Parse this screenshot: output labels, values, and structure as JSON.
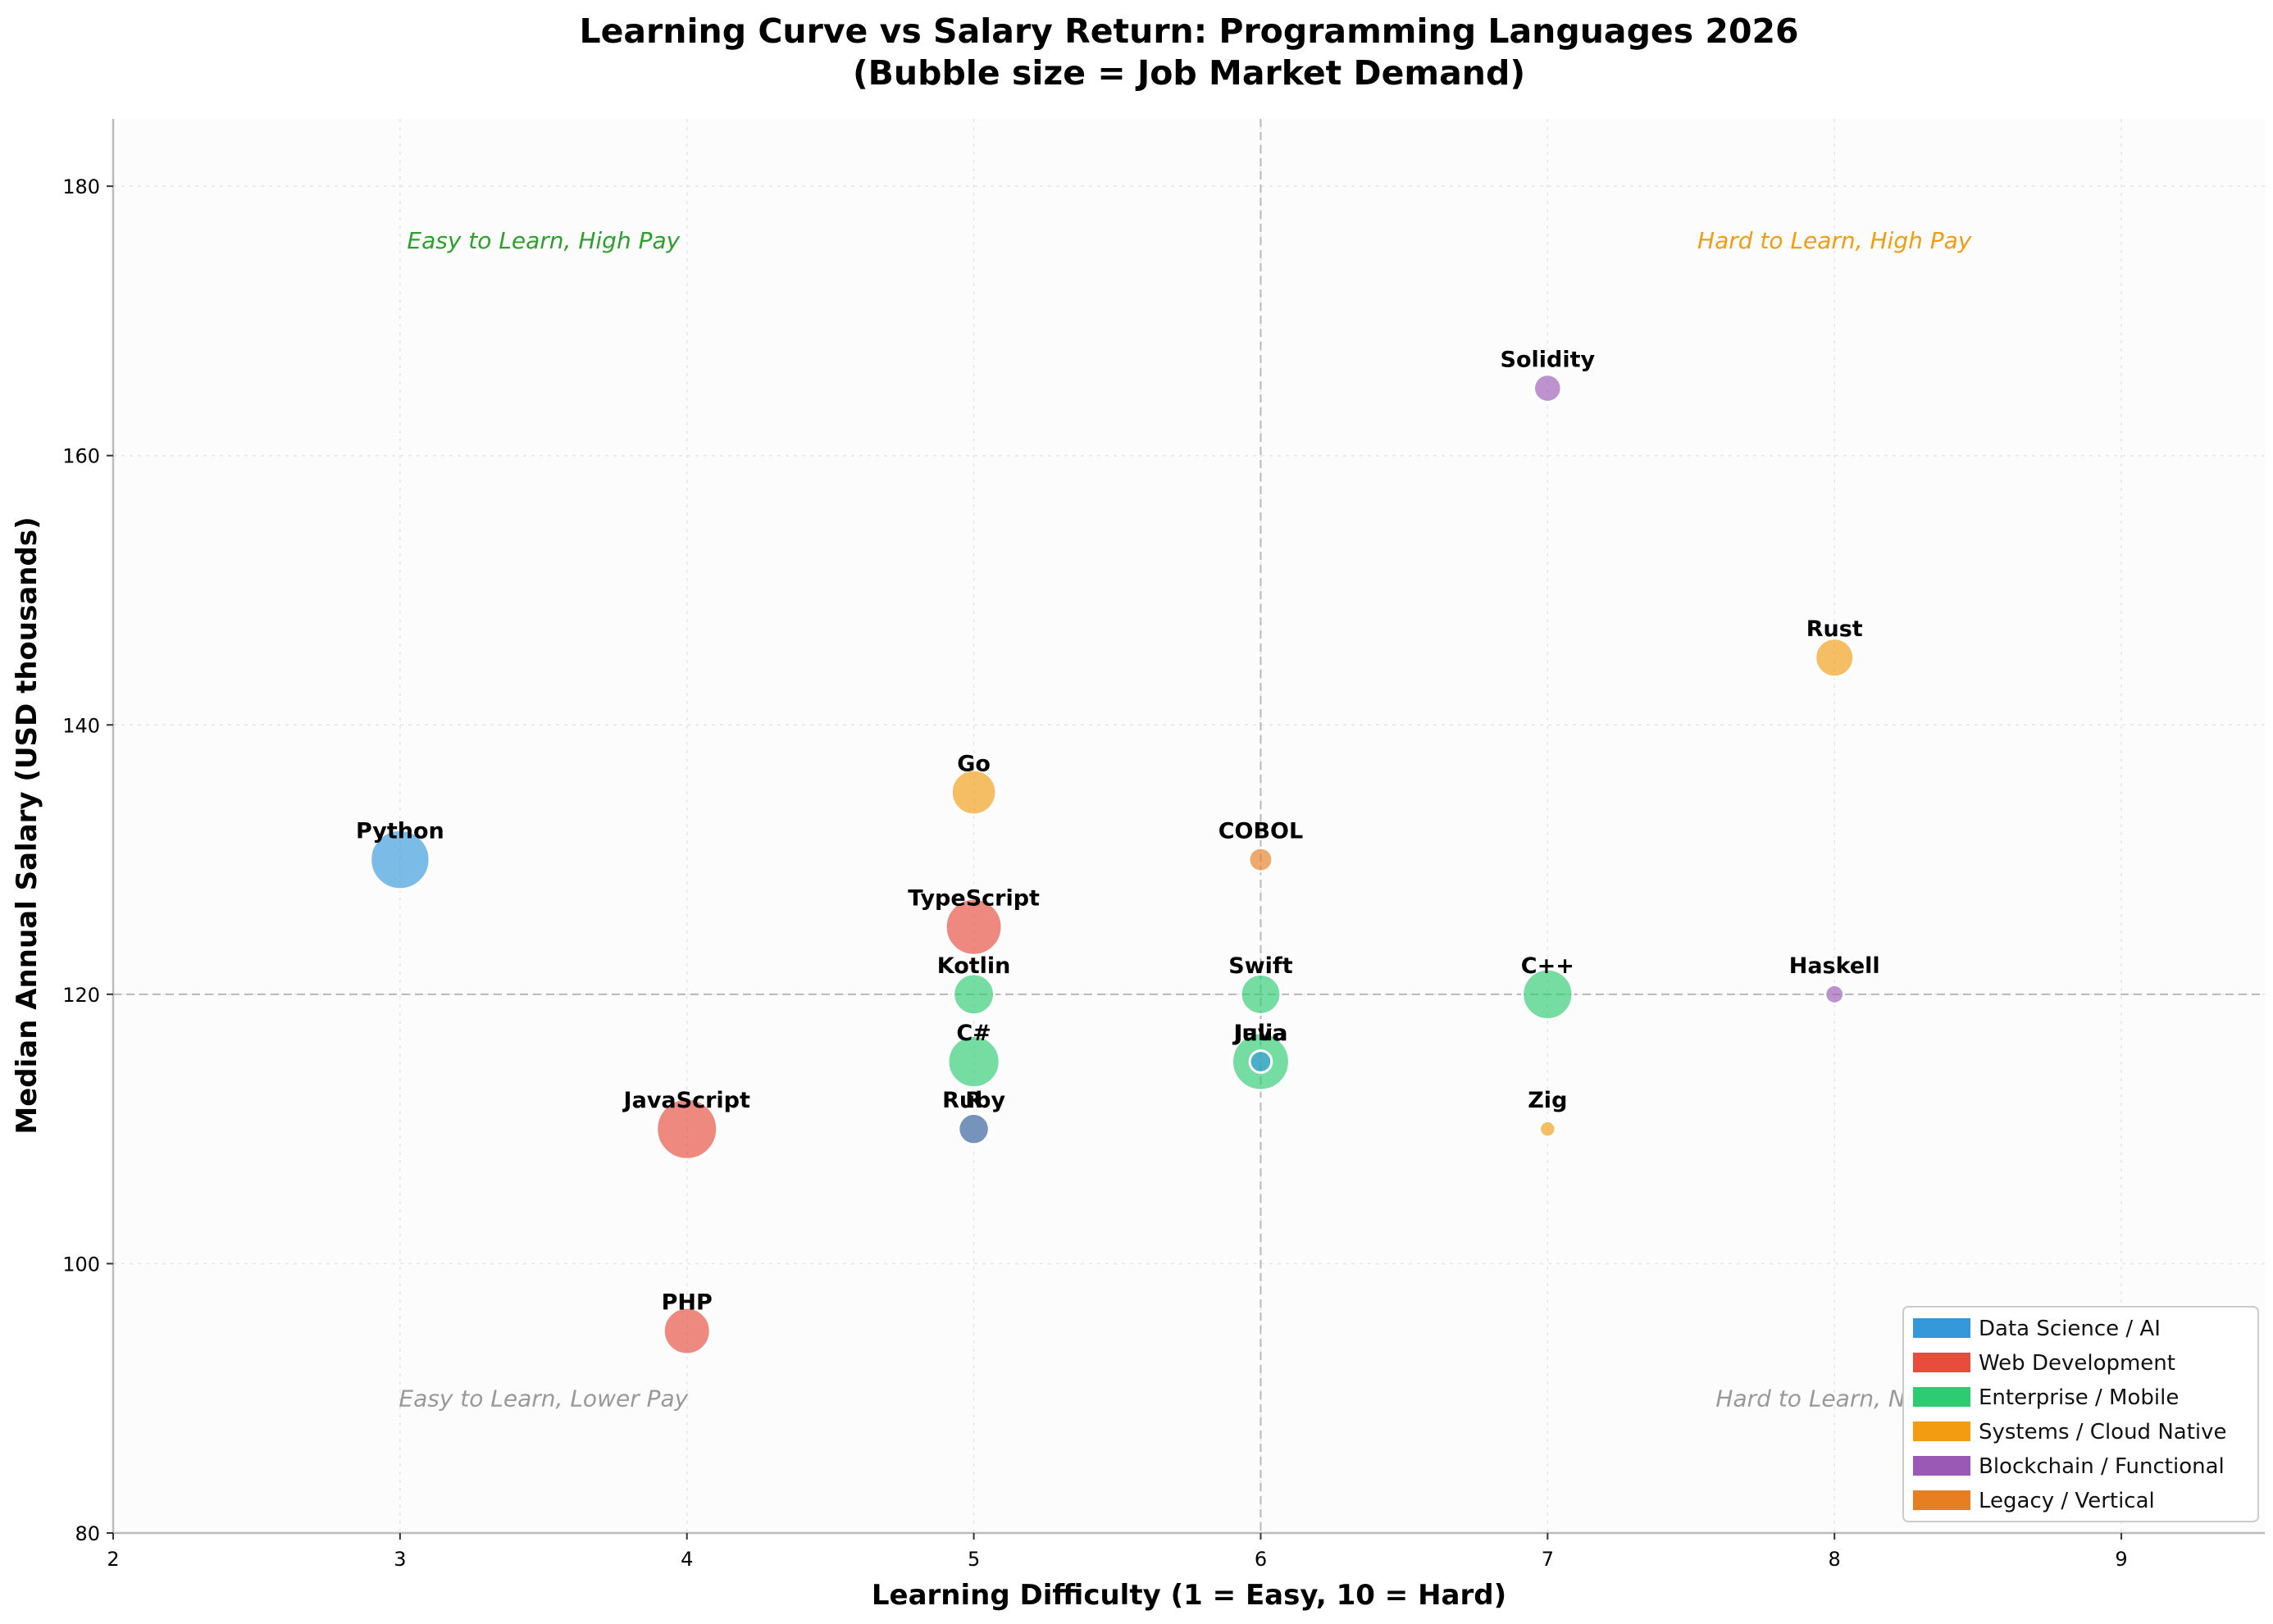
{
  "chart_data": {
    "type": "scatter",
    "title": "Learning Curve vs Salary Return: Programming Languages 2026",
    "subtitle": "(Bubble size = Job Market Demand)",
    "xlabel": "Learning Difficulty (1 = Easy, 10 = Hard)",
    "ylabel": "Median Annual Salary (USD thousands)",
    "xlim": [
      2,
      9.5
    ],
    "ylim": [
      80,
      185
    ],
    "xticks": [
      2,
      3,
      4,
      5,
      6,
      7,
      8,
      9
    ],
    "yticks": [
      80,
      100,
      120,
      140,
      160,
      180
    ],
    "reference_lines": {
      "x": 6,
      "y": 120
    },
    "grid": true,
    "legend_position": "bottom-right",
    "categories": [
      {
        "name": "Data Science / AI",
        "color": "#3498db"
      },
      {
        "name": "Web Development",
        "color": "#e74c3c"
      },
      {
        "name": "Enterprise / Mobile",
        "color": "#2ecc71"
      },
      {
        "name": "Systems / Cloud Native",
        "color": "#f39c12"
      },
      {
        "name": "Blockchain / Functional",
        "color": "#9b59b6"
      },
      {
        "name": "Legacy / Vertical",
        "color": "#e67e22"
      }
    ],
    "quadrant_labels": [
      {
        "text": "Easy to Learn, High Pay",
        "x": 3.5,
        "y": 176,
        "color": "#2ca02c"
      },
      {
        "text": "Hard to Learn, High Pay",
        "x": 8,
        "y": 176,
        "color": "#f39c12"
      },
      {
        "text": "Easy to Learn, Lower Pay",
        "x": 3.5,
        "y": 90,
        "color": "#999999"
      },
      {
        "text": "Hard to Learn, Niche",
        "x": 8,
        "y": 90,
        "color": "#999999"
      }
    ],
    "points": [
      {
        "label": "Python",
        "x": 3,
        "y": 130,
        "demand": 95,
        "category": "Data Science / AI"
      },
      {
        "label": "R",
        "x": 5,
        "y": 110,
        "demand": 20,
        "category": "Data Science / AI"
      },
      {
        "label": "Julia",
        "x": 6,
        "y": 115,
        "demand": 8,
        "category": "Data Science / AI"
      },
      {
        "label": "JavaScript",
        "x": 4,
        "y": 110,
        "demand": 100,
        "category": "Web Development"
      },
      {
        "label": "TypeScript",
        "x": 5,
        "y": 125,
        "demand": 85,
        "category": "Web Development"
      },
      {
        "label": "PHP",
        "x": 4,
        "y": 95,
        "demand": 55,
        "category": "Web Development"
      },
      {
        "label": "Ruby",
        "x": 5,
        "y": 110,
        "demand": 22,
        "category": "Web Development"
      },
      {
        "label": "Kotlin",
        "x": 5,
        "y": 120,
        "demand": 40,
        "category": "Enterprise / Mobile"
      },
      {
        "label": "C#",
        "x": 5,
        "y": 115,
        "demand": 70,
        "category": "Enterprise / Mobile"
      },
      {
        "label": "Swift",
        "x": 6,
        "y": 120,
        "demand": 38,
        "category": "Enterprise / Mobile"
      },
      {
        "label": "Java",
        "x": 6,
        "y": 115,
        "demand": 88,
        "category": "Enterprise / Mobile"
      },
      {
        "label": "C++",
        "x": 7,
        "y": 120,
        "demand": 65,
        "category": "Enterprise / Mobile"
      },
      {
        "label": "Go",
        "x": 5,
        "y": 135,
        "demand": 50,
        "category": "Systems / Cloud Native"
      },
      {
        "label": "Rust",
        "x": 8,
        "y": 145,
        "demand": 35,
        "category": "Systems / Cloud Native"
      },
      {
        "label": "Zig",
        "x": 7,
        "y": 110,
        "demand": 3,
        "category": "Systems / Cloud Native"
      },
      {
        "label": "Solidity",
        "x": 7,
        "y": 165,
        "demand": 15,
        "category": "Blockchain / Functional"
      },
      {
        "label": "Haskell",
        "x": 8,
        "y": 120,
        "demand": 5,
        "category": "Blockchain / Functional"
      },
      {
        "label": "COBOL",
        "x": 6,
        "y": 130,
        "demand": 10,
        "category": "Legacy / Vertical"
      }
    ]
  }
}
